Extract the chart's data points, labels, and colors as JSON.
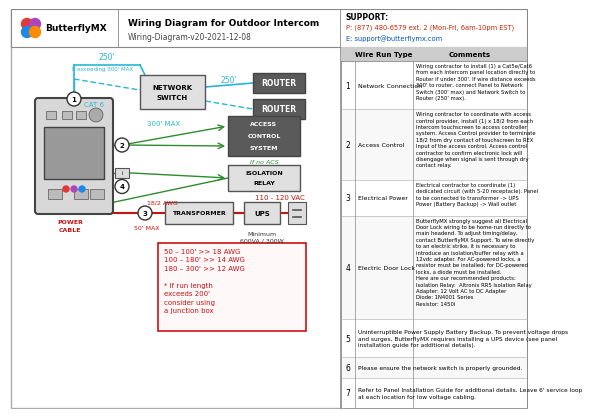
{
  "title": "Wiring Diagram for Outdoor Intercom",
  "subtitle": "Wiring-Diagram-v20-2021-12-08",
  "logo_text": "ButterflyMX",
  "support_line1": "SUPPORT:",
  "support_line2": "P: (877) 480-6579 ext. 2 (Mon-Fri, 6am-10pm EST)",
  "support_line3": "E: support@butterflymx.com",
  "bg_color": "#ffffff",
  "border_color": "#000000",
  "cyan_color": "#29b6d4",
  "green_color": "#2e8b2e",
  "red_color": "#cc1111",
  "dark_gray": "#333333",
  "box_gray": "#555555",
  "router_fill": "#5a5a5a",
  "acs_fill": "#5a5a5a",
  "wire_rows": [
    {
      "num": "1",
      "type": "Network Connection",
      "comment": "Wiring contractor to install (1) a Cat5e/Cat6\nfrom each Intercom panel location directly to\nRouter if under 300'. If wire distance exceeds\n300' to router, connect Panel to Network\nSwitch (300' max) and Network Switch to\nRouter (250' max)."
    },
    {
      "num": "2",
      "type": "Access Control",
      "comment": "Wiring contractor to coordinate with access\ncontrol provider, install (1) x 18/2 from each\nIntercom touchscreen to access controller\nsystem. Access Control provider to terminate\n18/2 from dry contact of touchscreen to REX\nInput of the access control. Access control\ncontractor to confirm electronic lock will\ndisengage when signal is sent through dry\ncontact relay."
    },
    {
      "num": "3",
      "type": "Electrical Power",
      "comment": "Electrical contractor to coordinate (1)\ndedicated circuit (with 5-20 receptacle). Panel\nto be connected to transformer -> UPS\nPower (Battery Backup) -> Wall outlet"
    },
    {
      "num": "4",
      "type": "Electric Door Lock",
      "comment": "ButterflyMX strongly suggest all Electrical\nDoor Lock wiring to be home-run directly to\nmain headend. To adjust timing/delay,\ncontact ButterflyMX Support. To wire directly\nto an electric strike, it is necessary to\nintroduce an isolation/buffer relay with a\n12vdc adapter. For AC-powered locks, a\nresistor must be installed; for DC-powered\nlocks, a diode must be installed.\nHere are our recommended products:\nIsolation Relay:  Altronix RR5 Isolation Relay\nAdapter: 12 Volt AC to DC Adapter\nDiode: 1N4001 Series\nResistor: 1450i"
    },
    {
      "num": "5",
      "type": "Uninterruptible Power Supply Battery Backup. To prevent voltage drops\nand surges, ButterflyMX requires installing a UPS device (see panel\ninstallation guide for additional details).",
      "comment": ""
    },
    {
      "num": "6",
      "type": "Please ensure the network switch is properly grounded.",
      "comment": ""
    },
    {
      "num": "7",
      "type": "Refer to Panel Installation Guide for additional details. Leave 6' service loop\nat each location for low voltage cabling.",
      "comment": ""
    }
  ]
}
